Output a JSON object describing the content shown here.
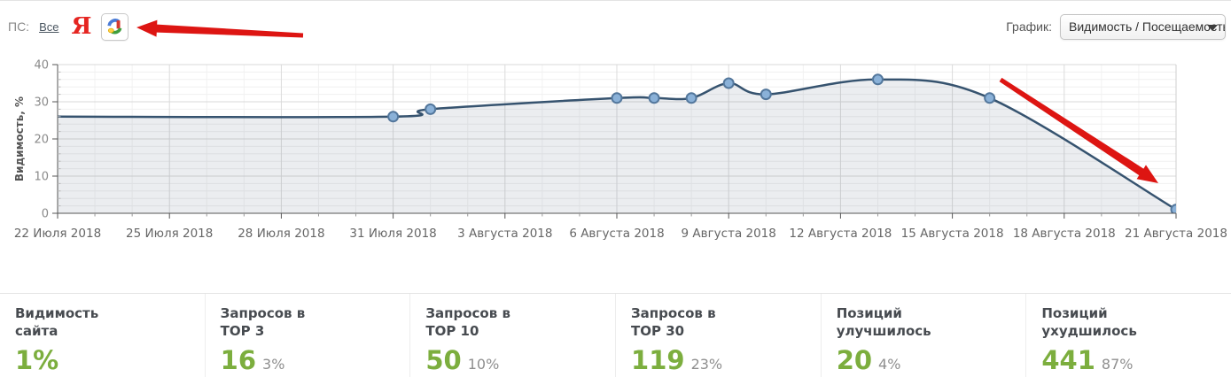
{
  "header": {
    "ps_label": "ПС:",
    "all_link": "Все",
    "yandex_letter": "Я",
    "chart_select_label": "График:",
    "chart_select_value": "Видимость / Посещаемость"
  },
  "chart_data": {
    "type": "area",
    "title": "",
    "xlabel": "",
    "ylabel": "Видимость, %",
    "ylim": [
      0,
      40
    ],
    "y_tick_step_major": 10,
    "y_tick_step_minor": 2,
    "x_days_total": 30,
    "x_label_every_days": 3,
    "grid": true,
    "legend": false,
    "x_tick_labels": [
      "22 Июля 2018",
      "25 Июля 2018",
      "28 Июля 2018",
      "31 Июля 2018",
      "3 Августа 2018",
      "6 Августа 2018",
      "9 Августа 2018",
      "12 Августа 2018",
      "15 Августа 2018",
      "18 Августа 2018",
      "21 Августа 2018"
    ],
    "series": [
      {
        "name": "Видимость, %",
        "points": [
          {
            "day": 0,
            "date": "22 Июля 2018",
            "value": 26,
            "marker": false
          },
          {
            "day": 9,
            "date": "31 Июля 2018",
            "value": 26,
            "marker": true
          },
          {
            "day": 10,
            "date": "1 Августа 2018",
            "value": 28,
            "marker": true
          },
          {
            "day": 15,
            "date": "6 Августа 2018",
            "value": 31,
            "marker": true
          },
          {
            "day": 16,
            "date": "7 Августа 2018",
            "value": 31,
            "marker": true
          },
          {
            "day": 17,
            "date": "8 Августа 2018",
            "value": 31,
            "marker": true
          },
          {
            "day": 18,
            "date": "9 Августа 2018",
            "value": 35,
            "marker": true
          },
          {
            "day": 19,
            "date": "10 Августа 2018",
            "value": 32,
            "marker": true
          },
          {
            "day": 22,
            "date": "13 Августа 2018",
            "value": 36,
            "marker": true
          },
          {
            "day": 25,
            "date": "16 Августа 2018",
            "value": 31,
            "marker": true
          },
          {
            "day": 30,
            "date": "21 Августа 2018",
            "value": 1,
            "marker": true
          }
        ]
      }
    ],
    "colors": {
      "line": "#36536f",
      "area": "rgba(54,83,111,0.10)",
      "marker_fill": "#8ab1d8",
      "marker_stroke": "#53779c"
    }
  },
  "annotations": [
    {
      "name": "red-arrow-to-search-engines",
      "from": [
        342,
        39
      ],
      "to": [
        154,
        30
      ]
    },
    {
      "name": "red-arrow-visibility-drop",
      "from": [
        1129,
        89
      ],
      "to": [
        1307,
        206
      ]
    }
  ],
  "colors": {
    "annotation_red": "#dd1512",
    "stat_green": "#7cae3e",
    "yandex_red": "#e52521"
  },
  "stats": {
    "cards": [
      {
        "label_line1": "Видимость",
        "label_line2": "сайта",
        "value": "1%",
        "percent": ""
      },
      {
        "label_line1": "Запросов в",
        "label_line2": "TOP 3",
        "value": "16",
        "percent": "3%"
      },
      {
        "label_line1": "Запросов в",
        "label_line2": "TOP 10",
        "value": "50",
        "percent": "10%"
      },
      {
        "label_line1": "Запросов в",
        "label_line2": "TOP 30",
        "value": "119",
        "percent": "23%"
      },
      {
        "label_line1": "Позиций",
        "label_line2": "улучшилось",
        "value": "20",
        "percent": "4%"
      },
      {
        "label_line1": "Позиций",
        "label_line2": "ухудшилось",
        "value": "441",
        "percent": "87%"
      }
    ]
  }
}
